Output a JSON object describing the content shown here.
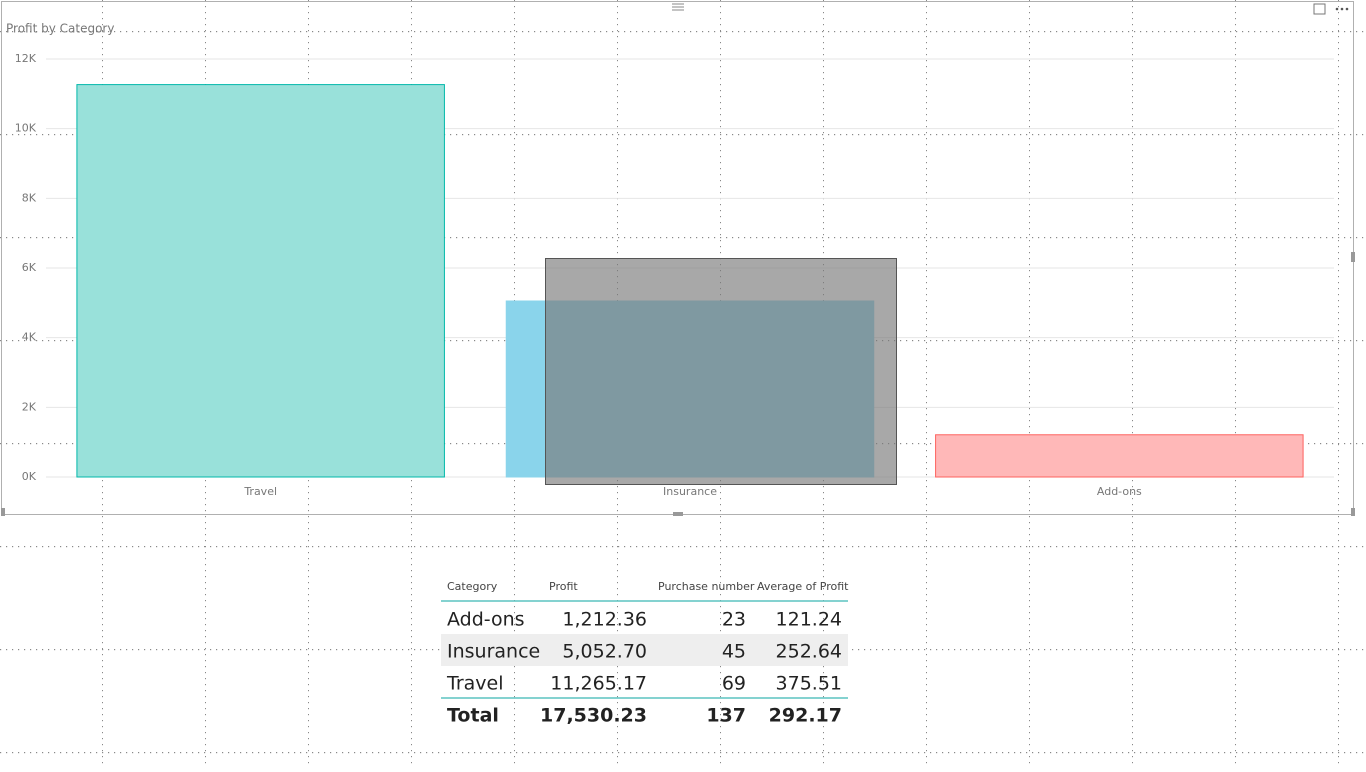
{
  "chart_data": {
    "type": "bar",
    "title": "Profit by Category",
    "categories": [
      "Travel",
      "Insurance",
      "Add-ons"
    ],
    "values": [
      11265.17,
      5052.7,
      1212.36
    ],
    "colors": [
      "#99e1da",
      "#8ad4eb",
      "#ffb8b8"
    ],
    "border_colors": [
      "#01b8aa",
      "#8ad4eb",
      "#fd625e"
    ],
    "ylim": [
      0,
      12000
    ],
    "yticks": [
      {
        "value": 0,
        "label": "0K"
      },
      {
        "value": 2000,
        "label": "2K"
      },
      {
        "value": 4000,
        "label": "4K"
      },
      {
        "value": 6000,
        "label": "6K"
      },
      {
        "value": 8000,
        "label": "8K"
      },
      {
        "value": 10000,
        "label": "10K"
      },
      {
        "value": 12000,
        "label": "12K"
      }
    ],
    "grid": true
  },
  "table": {
    "headers": [
      "Category",
      "Profit",
      "Purchase number",
      "Average of Profit"
    ],
    "rows": [
      [
        "Add-ons",
        "1,212.36",
        "23",
        "121.24"
      ],
      [
        "Insurance",
        "5,052.70",
        "45",
        "252.64"
      ],
      [
        "Travel",
        "11,265.17",
        "69",
        "375.51"
      ]
    ],
    "total": [
      "Total",
      "17,530.23",
      "137",
      "292.17"
    ]
  }
}
